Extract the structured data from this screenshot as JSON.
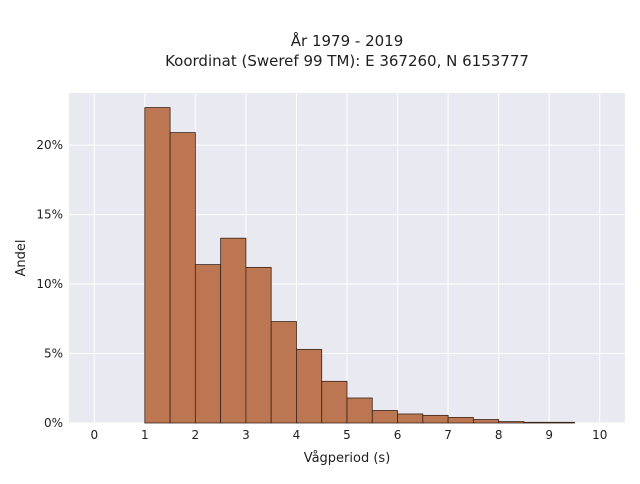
{
  "chart_data": {
    "type": "bar",
    "title": "År 1979 - 2019",
    "subtitle": "Koordinat (Sweref 99 TM): E 367260, N 6153777",
    "xlabel": "Vågperiod (s)",
    "ylabel": "Andel",
    "xlim": [
      -0.5,
      10.5
    ],
    "ylim": [
      0,
      0.2375
    ],
    "x_ticks": [
      0,
      1,
      2,
      3,
      4,
      5,
      6,
      7,
      8,
      9,
      10
    ],
    "x_tick_labels": [
      "0",
      "1",
      "2",
      "3",
      "4",
      "5",
      "6",
      "7",
      "8",
      "9",
      "10"
    ],
    "y_ticks": [
      0,
      0.05,
      0.1,
      0.15,
      0.2
    ],
    "y_tick_labels": [
      "0%",
      "5%",
      "10%",
      "15%",
      "20%"
    ],
    "bin_width": 0.5,
    "bins": [
      {
        "x0": 1.0,
        "x1": 1.5,
        "value": 0.227
      },
      {
        "x0": 1.5,
        "x1": 2.0,
        "value": 0.209
      },
      {
        "x0": 2.0,
        "x1": 2.5,
        "value": 0.114
      },
      {
        "x0": 2.5,
        "x1": 3.0,
        "value": 0.133
      },
      {
        "x0": 3.0,
        "x1": 3.5,
        "value": 0.112
      },
      {
        "x0": 3.5,
        "x1": 4.0,
        "value": 0.073
      },
      {
        "x0": 4.0,
        "x1": 4.5,
        "value": 0.053
      },
      {
        "x0": 4.5,
        "x1": 5.0,
        "value": 0.03
      },
      {
        "x0": 5.0,
        "x1": 5.5,
        "value": 0.018
      },
      {
        "x0": 5.5,
        "x1": 6.0,
        "value": 0.009
      },
      {
        "x0": 6.0,
        "x1": 6.5,
        "value": 0.0065
      },
      {
        "x0": 6.5,
        "x1": 7.0,
        "value": 0.0055
      },
      {
        "x0": 7.0,
        "x1": 7.5,
        "value": 0.004
      },
      {
        "x0": 7.5,
        "x1": 8.0,
        "value": 0.0025
      },
      {
        "x0": 8.0,
        "x1": 8.5,
        "value": 0.001
      },
      {
        "x0": 8.5,
        "x1": 9.0,
        "value": 0.0005
      },
      {
        "x0": 9.0,
        "x1": 9.5,
        "value": 0.0005
      }
    ],
    "grid": true,
    "colors": {
      "bar_fill": "#bc7752",
      "bar_edge": "#3a2418",
      "plot_background": "#e9e9f1",
      "grid": "#ffffff"
    }
  }
}
